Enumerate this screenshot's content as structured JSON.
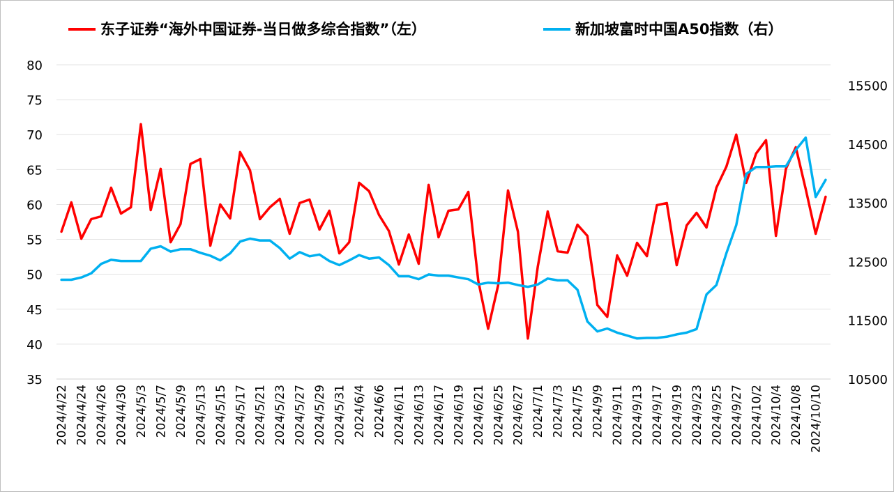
{
  "chart_data": {
    "type": "line",
    "title": "",
    "xlabel": "",
    "ylabel": "",
    "legend_position": "top",
    "grid": true,
    "y_left": {
      "lim": [
        35,
        80
      ],
      "ticks": [
        35,
        40,
        45,
        50,
        55,
        60,
        65,
        70,
        75,
        80
      ]
    },
    "y_right": {
      "lim": [
        10500,
        15850
      ],
      "ticks": [
        10500,
        11500,
        12500,
        13500,
        14500,
        15500
      ]
    },
    "x_tick_labels": [
      "2024/4/22",
      "2024/4/24",
      "2024/4/26",
      "2024/4/30",
      "2024/5/3",
      "2024/5/7",
      "2024/5/9",
      "2024/5/13",
      "2024/5/15",
      "2024/5/17",
      "2024/5/21",
      "2024/5/23",
      "2024/5/27",
      "2024/5/29",
      "2024/5/31",
      "2024/6/4",
      "2024/6/6",
      "2024/6/11",
      "2024/6/13",
      "2024/6/17",
      "2024/6/19",
      "2024/6/21",
      "2024/6/25",
      "2024/6/27",
      "2024/7/1",
      "2024/7/3",
      "2024/7/5",
      "2024/9/9",
      "2024/9/11",
      "2024/9/13",
      "2024/9/17",
      "2024/9/19",
      "2024/9/23",
      "2024/9/25",
      "2024/9/27",
      "2024/10/2",
      "2024/10/4",
      "2024/10/8",
      "2024/10/10"
    ],
    "x_count": 78,
    "series": [
      {
        "name": "东子证券“海外中国证券-当日做多综合指数”（左）",
        "axis": "left",
        "color": "#ff0000",
        "values": [
          56.1,
          60.3,
          55.1,
          57.9,
          58.3,
          62.4,
          58.7,
          59.6,
          71.5,
          59.2,
          65.1,
          54.6,
          57.2,
          65.8,
          66.5,
          54.1,
          60.0,
          58.0,
          67.5,
          64.9,
          57.9,
          59.6,
          60.8,
          55.8,
          60.2,
          60.7,
          56.4,
          59.1,
          53.0,
          54.6,
          63.1,
          61.9,
          58.5,
          56.2,
          51.4,
          55.7,
          51.5,
          62.8,
          55.3,
          59.1,
          59.3,
          61.8,
          49.1,
          42.2,
          48.4,
          62.0,
          56.1,
          40.8,
          51.1,
          59.0,
          53.3,
          53.1,
          57.1,
          55.5,
          45.6,
          43.9,
          52.7,
          49.8,
          54.5,
          52.6,
          59.9,
          60.2,
          51.3,
          57.0,
          58.8,
          56.7,
          62.4,
          65.4,
          70.0,
          63.1,
          67.3,
          69.2,
          55.5,
          65.1,
          68.2,
          62.2,
          55.8,
          61.1
        ]
      },
      {
        "name": "新加坡富时中国A50指数（右）",
        "axis": "right",
        "color": "#00b0f0",
        "values": [
          12190,
          12190,
          12230,
          12300,
          12460,
          12530,
          12510,
          12510,
          12510,
          12720,
          12760,
          12670,
          12710,
          12710,
          12650,
          12600,
          12520,
          12640,
          12840,
          12890,
          12860,
          12860,
          12730,
          12550,
          12660,
          12590,
          12620,
          12510,
          12440,
          12520,
          12610,
          12550,
          12570,
          12440,
          12250,
          12250,
          12200,
          12280,
          12260,
          12260,
          12230,
          12200,
          12110,
          12140,
          12130,
          12140,
          12100,
          12070,
          12110,
          12210,
          12180,
          12180,
          12020,
          11480,
          11310,
          11360,
          11290,
          11240,
          11190,
          11200,
          11200,
          11220,
          11260,
          11290,
          11350,
          11940,
          12100,
          12640,
          13120,
          13990,
          14110,
          14110,
          14120,
          14120,
          14400,
          14610,
          13600,
          13890
        ]
      }
    ]
  }
}
